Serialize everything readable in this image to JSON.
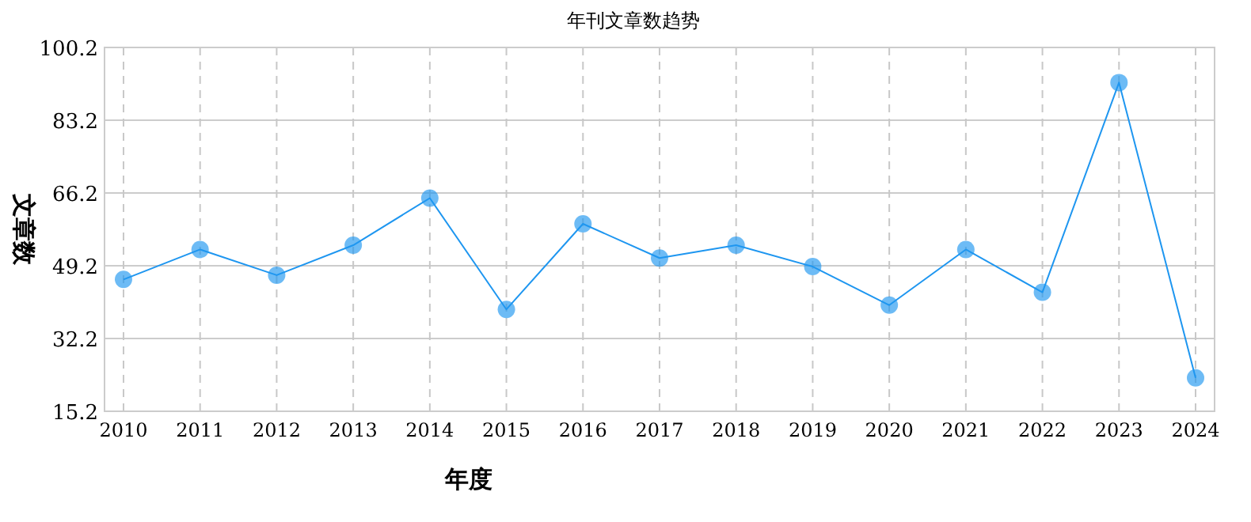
{
  "chart_data": {
    "type": "line",
    "title": "年刊文章数趋势",
    "xlabel": "年度",
    "ylabel": "文章数",
    "categories": [
      "2010",
      "2011",
      "2012",
      "2013",
      "2014",
      "2015",
      "2016",
      "2017",
      "2018",
      "2019",
      "2020",
      "2021",
      "2022",
      "2023",
      "2024"
    ],
    "series": [
      {
        "color": "#1e96f0",
        "values": [
          46,
          53,
          47,
          54,
          65,
          39,
          59,
          51,
          54,
          49,
          40,
          53,
          43,
          92,
          23
        ]
      }
    ],
    "ylim": [
      15.2,
      100.2
    ],
    "yticks": [
      15.2,
      32.2,
      49.2,
      66.2,
      83.2,
      100.2
    ],
    "grid": true,
    "marker": "circle",
    "line_style": "solid"
  }
}
